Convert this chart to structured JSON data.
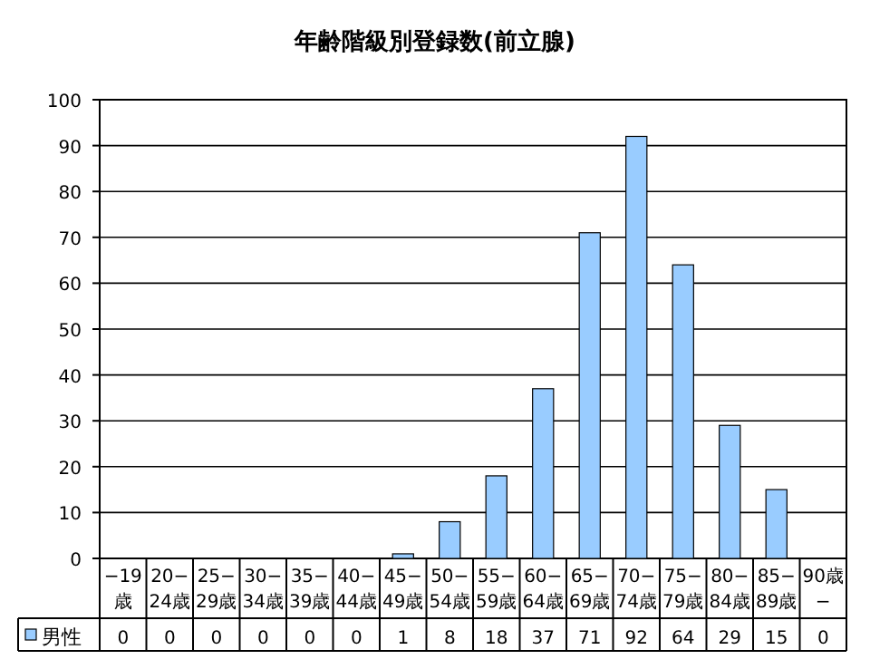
{
  "chart_data": {
    "type": "bar",
    "title": "年齢階級別登録数(前立腺)",
    "categories": [
      "−19歳",
      "20−24歳",
      "25−29歳",
      "30−34歳",
      "35−39歳",
      "40−44歳",
      "45−49歳",
      "50−54歳",
      "55−59歳",
      "60−64歳",
      "65−69歳",
      "70−74歳",
      "75−79歳",
      "80−84歳",
      "85−89歳",
      "90歳−"
    ],
    "series": [
      {
        "name": "男性",
        "color": "#99ccff",
        "values": [
          0,
          0,
          0,
          0,
          0,
          0,
          1,
          8,
          18,
          37,
          71,
          92,
          64,
          29,
          15,
          0
        ]
      }
    ],
    "ylim": [
      0,
      100
    ],
    "yticks": [
      0,
      10,
      20,
      30,
      40,
      50,
      60,
      70,
      80,
      90,
      100
    ],
    "grid": "y",
    "data_labels": true,
    "legend": "bottom left"
  }
}
